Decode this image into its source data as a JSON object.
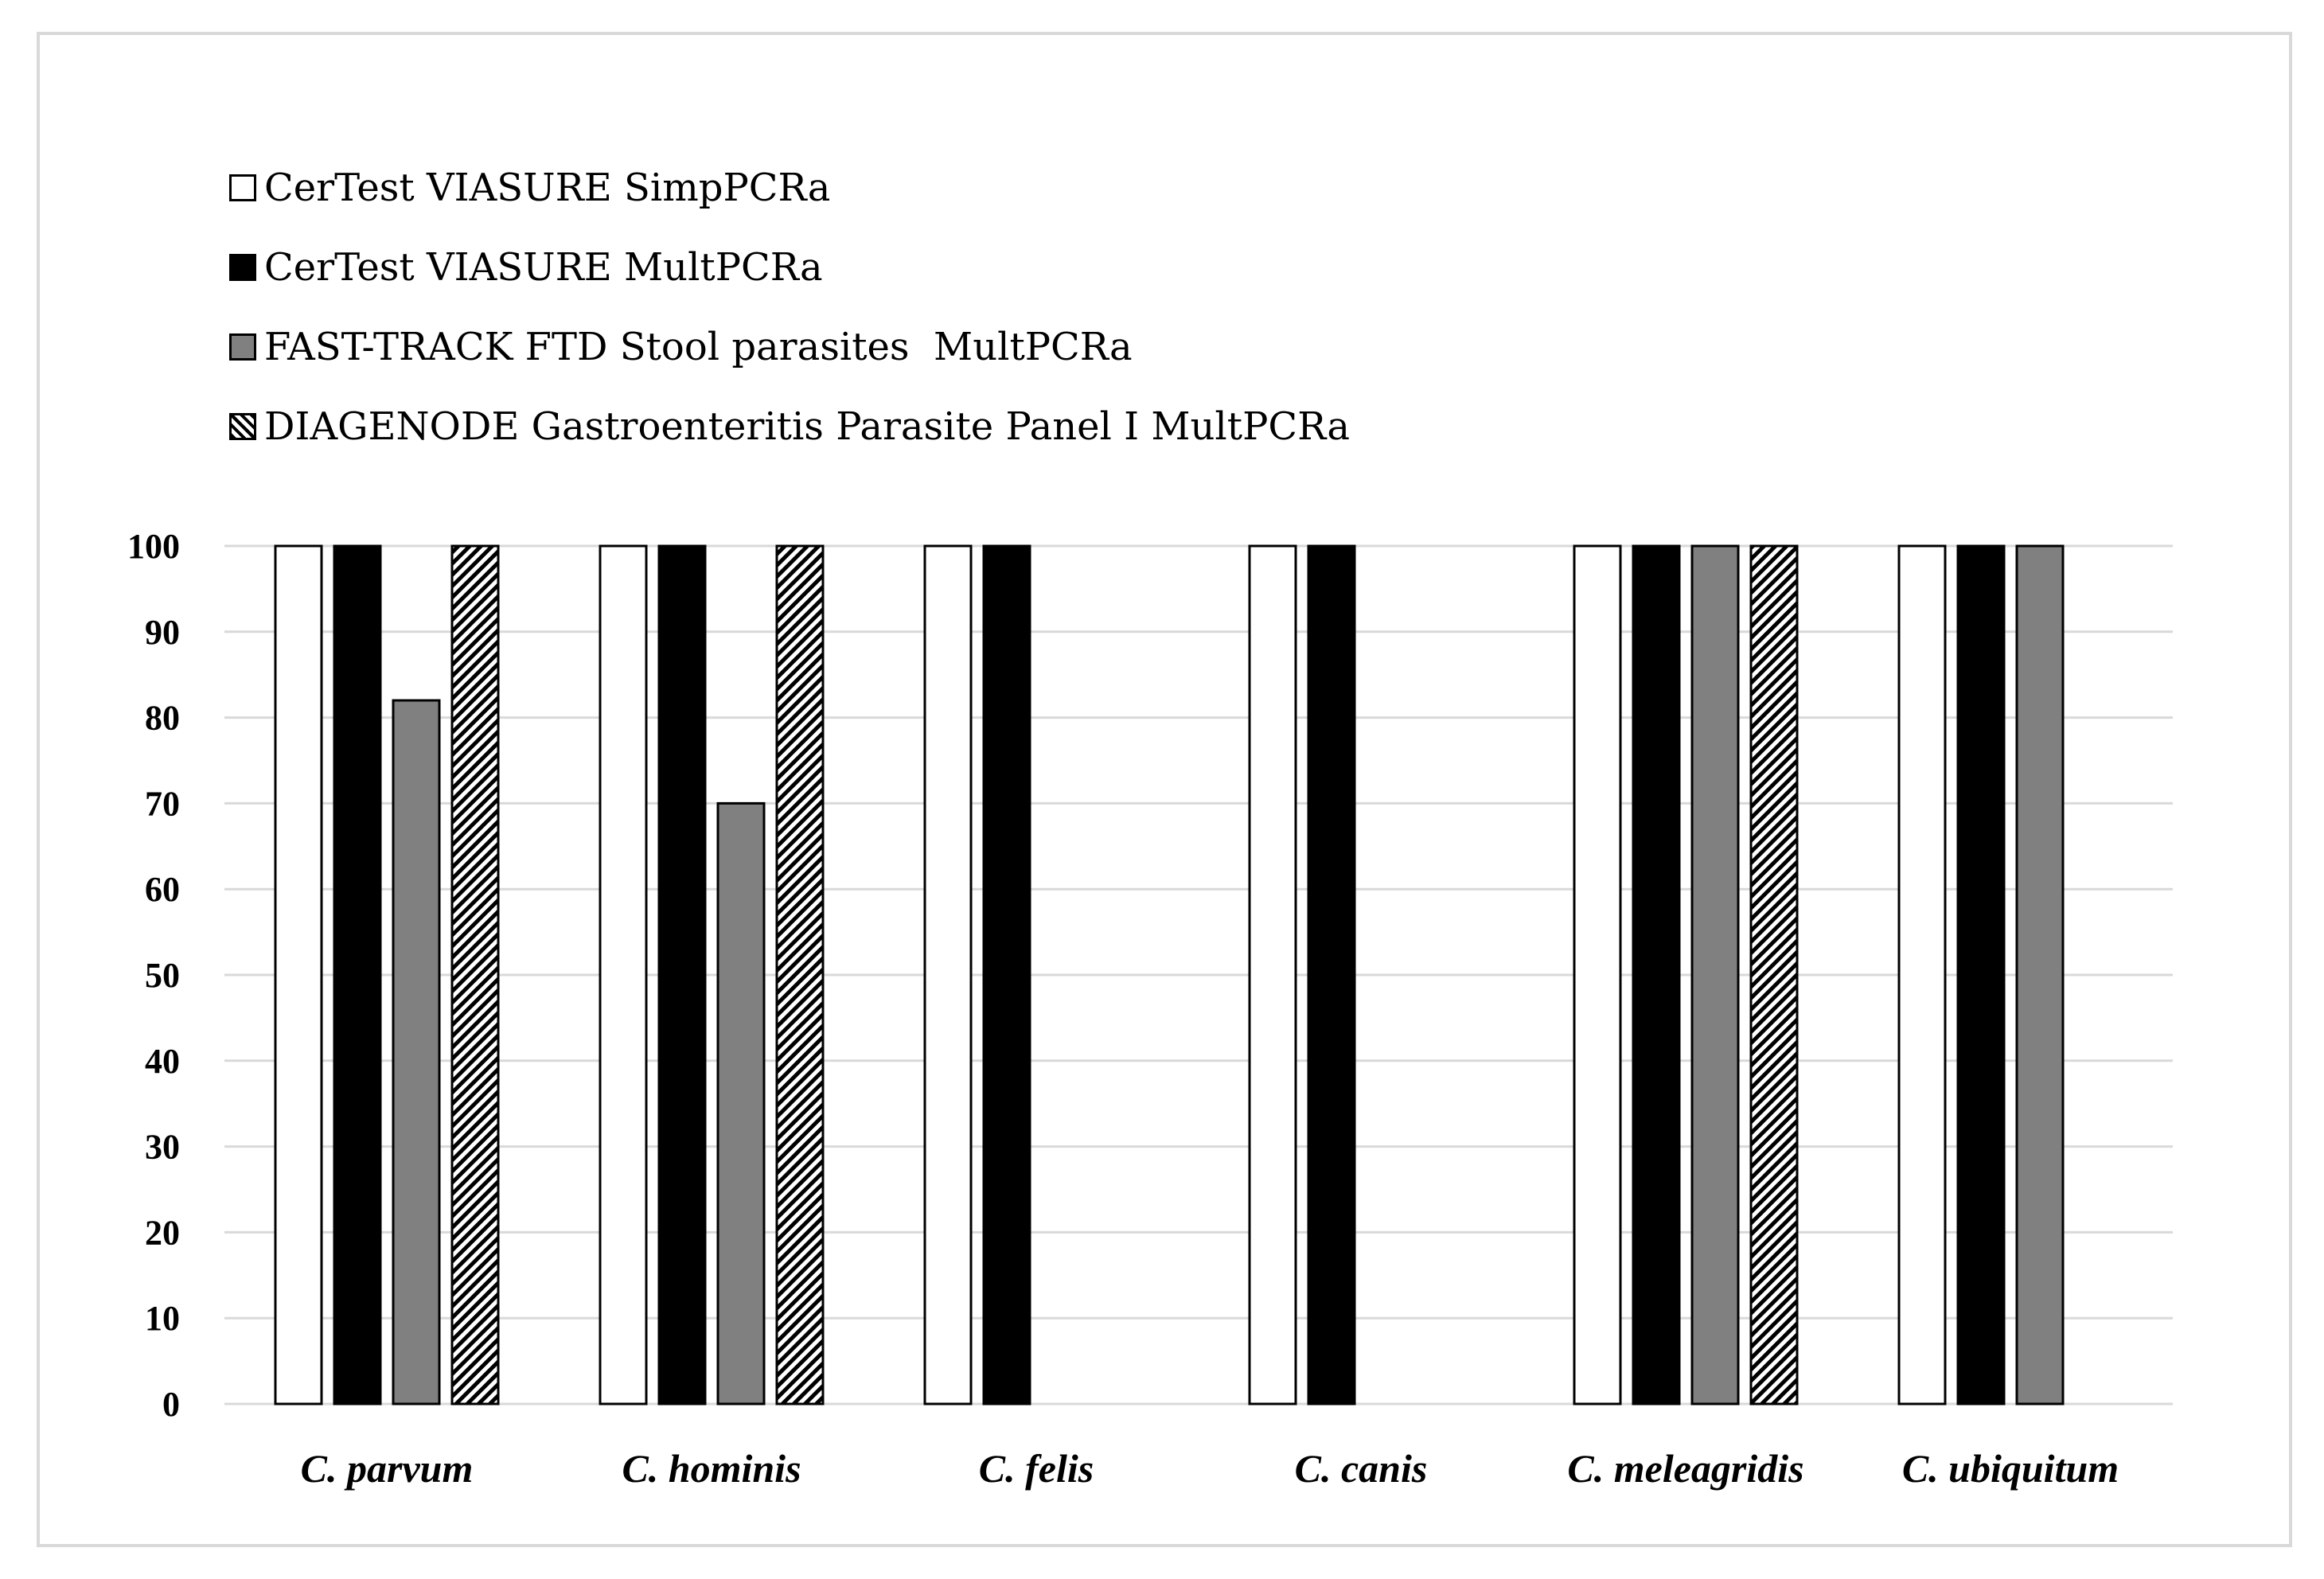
{
  "chart_data": {
    "type": "bar",
    "title": "",
    "xlabel": "",
    "ylabel": "",
    "ylim": [
      0,
      100
    ],
    "yticks": [
      0,
      10,
      20,
      30,
      40,
      50,
      60,
      70,
      80,
      90,
      100
    ],
    "grid": true,
    "legend_position": "top-left",
    "categories": [
      "C. parvum",
      "C. hominis",
      "C. felis",
      "C. canis",
      "C. meleagridis",
      "C. ubiquitum"
    ],
    "series": [
      {
        "name": "CerTest VIASURE SimpPCRa",
        "fill": "#ffffff",
        "pattern": "none",
        "values": [
          100,
          100,
          100,
          100,
          100,
          100
        ]
      },
      {
        "name": "CerTest VIASURE MultPCRa",
        "fill": "#000000",
        "pattern": "none",
        "values": [
          100,
          100,
          100,
          100,
          100,
          100
        ]
      },
      {
        "name": "FAST-TRACK FTD Stool parasites  MultPCRa",
        "fill": "#808080",
        "pattern": "none",
        "values": [
          82,
          70,
          0,
          0,
          100,
          100
        ]
      },
      {
        "name": "DIAGENODE Gastroenteritis Parasite Panel I MultPCRa",
        "fill": "#ffffff",
        "pattern": "hatch",
        "values": [
          100,
          100,
          0,
          0,
          100,
          0
        ]
      }
    ]
  },
  "colors": {
    "gridline": "#d9d9d9",
    "border": "#d9d9d9",
    "axis": "#d9d9d9",
    "bar_outline": "#000000"
  }
}
